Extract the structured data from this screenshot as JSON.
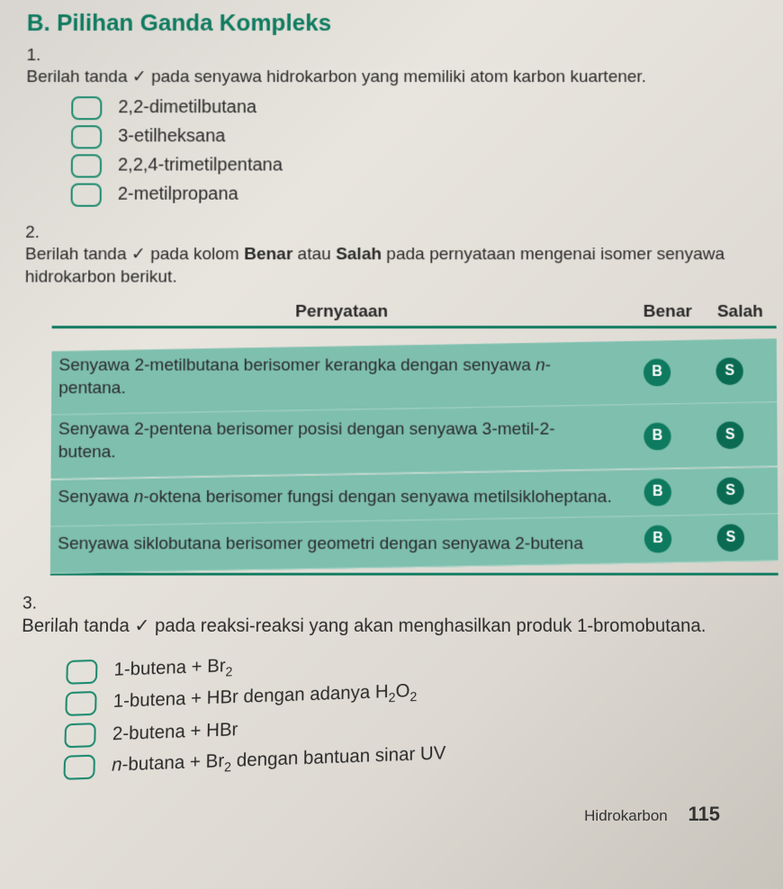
{
  "section": {
    "label": "B.",
    "title": "Pilihan Ganda Kompleks"
  },
  "q1": {
    "num": "1.",
    "prefix": "Berilah tanda ",
    "check": "✓",
    "suffix": " pada senyawa hidrokarbon yang memiliki atom karbon kuartener.",
    "options": [
      "2,2-dimetilbutana",
      "3-etilheksana",
      "2,2,4-trimetilpentana",
      "2-metilpropana"
    ]
  },
  "q2": {
    "num": "2.",
    "prefix": "Berilah tanda ",
    "check": "✓",
    "mid": " pada kolom ",
    "b1": "Benar",
    "mid2": " atau ",
    "b2": "Salah",
    "suffix": " pada pernyataan mengenai isomer senyawa hidrokarbon berikut.",
    "headers": {
      "stmt": "Pernyataan",
      "benar": "Benar",
      "salah": "Salah"
    },
    "rows": [
      {
        "stmt_a": "Senyawa 2-metilbutana berisomer kerangka dengan senyawa ",
        "stmt_i": "n",
        "stmt_b": "-pentana."
      },
      {
        "stmt_a": "Senyawa 2-pentena berisomer posisi dengan senyawa 3-metil-2-butena.",
        "stmt_i": "",
        "stmt_b": ""
      },
      {
        "stmt_a": "Senyawa ",
        "stmt_i": "n",
        "stmt_b": "-oktena berisomer fungsi dengan senyawa metilsikloheptana."
      },
      {
        "stmt_a": "Senyawa siklobutana berisomer geometri dengan senyawa 2-butena",
        "stmt_i": "",
        "stmt_b": ""
      }
    ],
    "badge_b": "B",
    "badge_s": "S"
  },
  "q3": {
    "num": "3.",
    "prefix": "Berilah tanda ",
    "check": "✓",
    "suffix": " pada reaksi-reaksi yang akan menghasilkan produk 1-bromobutana.",
    "options": [
      {
        "a": "1-butena + Br",
        "sub1": "2",
        "b": ""
      },
      {
        "a": "1-butena + HBr dengan adanya H",
        "sub1": "2",
        "b": "O",
        "sub2": "2",
        "c": ""
      },
      {
        "a": "2-butena + HBr",
        "sub1": "",
        "b": ""
      },
      {
        "pre_i": "n",
        "a": "-butana + Br",
        "sub1": "2",
        "b": " dengan bantuan sinar UV"
      }
    ]
  },
  "footer": {
    "label": "Hidrokarbon",
    "page": "115"
  },
  "colors": {
    "accent": "#0e7a5f",
    "row_bg": "#7ebfae",
    "badge_b": "#0e7a5f",
    "badge_s": "#0a6b52"
  }
}
